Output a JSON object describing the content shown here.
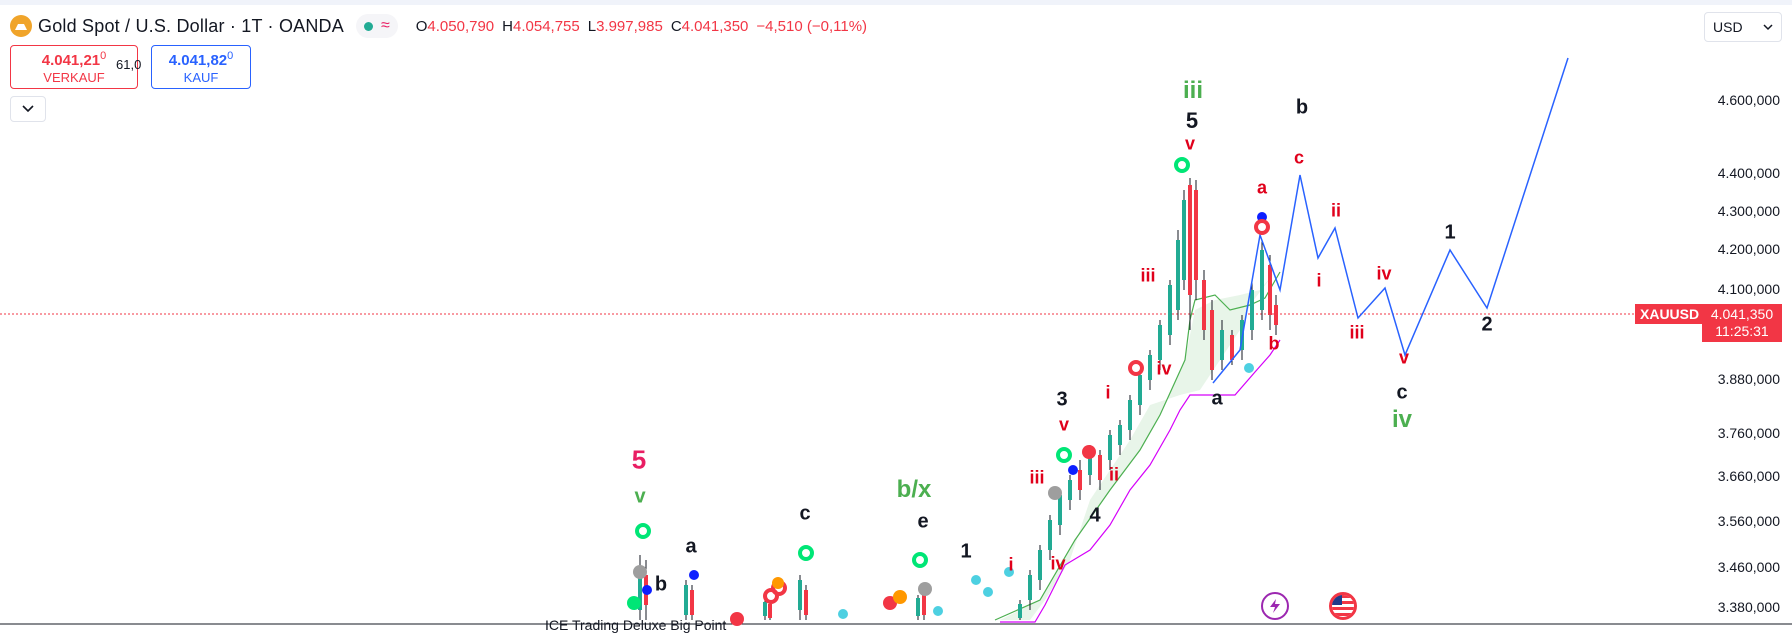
{
  "header": {
    "symbol_title": "Gold Spot / U.S. Dollar · 1T · OANDA",
    "wave_icon": "≈",
    "ohlc": [
      {
        "key": "O",
        "value": "4.050,790"
      },
      {
        "key": "H",
        "value": "4.054,755"
      },
      {
        "key": "L",
        "value": "3.997,985"
      },
      {
        "key": "C",
        "value": "4.041,350"
      }
    ],
    "change": "−4,510 (−0,11%)"
  },
  "trade": {
    "sell_price": "4.041,21",
    "sell_price_small": "0",
    "sell_label": "VERKAUF",
    "spread": "61,0",
    "buy_price": "4.041,82",
    "buy_price_small": "0",
    "buy_label": "KAUF"
  },
  "currency": {
    "value": "USD",
    "icon": "chevron-down-icon"
  },
  "price_axis": {
    "labels": [
      "4.600,000",
      "4.400,000",
      "4.300,000",
      "4.200,000",
      "4.100,000",
      "3.880,000",
      "3.760,000",
      "3.660,000",
      "3.560,000",
      "3.460,000",
      "3.380,000"
    ],
    "current_symbol": "XAUUSD",
    "current_price": "4.041,350",
    "countdown": "11:25:31"
  },
  "indicator": {
    "name": "ICE Trading Deluxe Big Point"
  },
  "wave_labels": {
    "l_5_pink": "5",
    "l_v_green": "v",
    "l_a1": "a",
    "l_b1": "b",
    "l_c1": "c",
    "l_bx": "b/x",
    "l_e": "e",
    "l_1a": "1",
    "l_i1": "i",
    "l_iii1": "iii",
    "l_iv1": "iv",
    "l_3": "3",
    "l_v1": "v",
    "l_ii1": "ii",
    "l_4": "4",
    "l_i2": "i",
    "l_iv2": "iv",
    "l_iii2": "iii",
    "l_iii_green": "iii",
    "l_5b": "5",
    "l_v2": "v",
    "l_a2": "a",
    "l_b2": "b",
    "l_a3": "a",
    "l_c2": "c",
    "l_b3": "b",
    "l_ii2": "ii",
    "l_i3": "i",
    "l_iv3": "iv",
    "l_iii3": "iii",
    "l_v3": "v",
    "l_c3": "c",
    "l_iv_green": "iv",
    "l_1b": "1",
    "l_2": "2"
  },
  "colors": {
    "up": "#22ab94",
    "down": "#f23645",
    "projection": "#2962ff",
    "cloud_green": "#4caf50",
    "cloud_magenta": "#d500f9"
  }
}
